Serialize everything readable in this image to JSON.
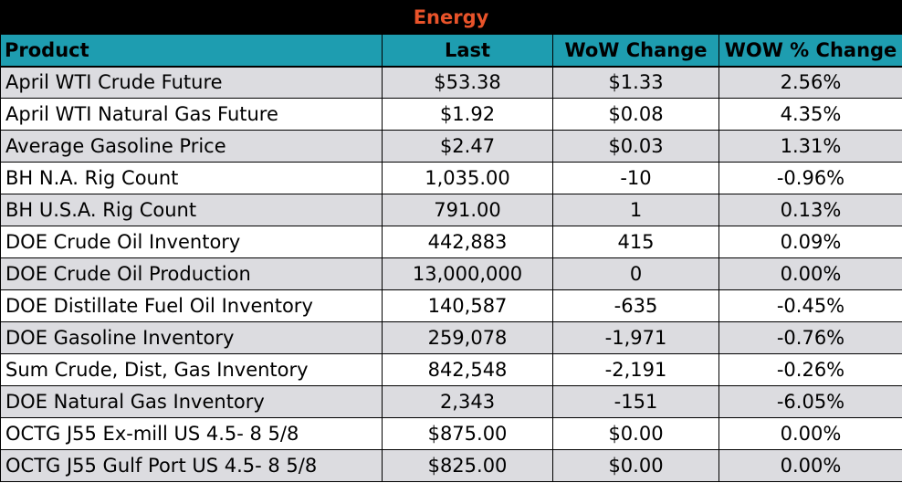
{
  "title": "Energy",
  "colors": {
    "title_background": "#000000",
    "title_text": "#e8532a",
    "header_background": "#1e9db0",
    "row_shade": "#dcdce0",
    "row_plain": "#ffffff"
  },
  "headers": {
    "product": "Product",
    "last": "Last",
    "wow_change": "WoW Change",
    "wow_pct_change": "WOW % Change"
  },
  "rows": [
    {
      "product": "April WTI Crude Future",
      "last": "$53.38",
      "wow_change": "$1.33",
      "wow_pct_change": "2.56%"
    },
    {
      "product": "April WTI Natural Gas Future",
      "last": "$1.92",
      "wow_change": "$0.08",
      "wow_pct_change": "4.35%"
    },
    {
      "product": "Average Gasoline Price",
      "last": "$2.47",
      "wow_change": "$0.03",
      "wow_pct_change": "1.31%"
    },
    {
      "product": "BH N.A. Rig Count",
      "last": "1,035.00",
      "wow_change": "-10",
      "wow_pct_change": "-0.96%"
    },
    {
      "product": "BH U.S.A. Rig Count",
      "last": "791.00",
      "wow_change": "1",
      "wow_pct_change": "0.13%"
    },
    {
      "product": "DOE Crude Oil Inventory",
      "last": "442,883",
      "wow_change": "415",
      "wow_pct_change": "0.09%"
    },
    {
      "product": "DOE Crude Oil Production",
      "last": "13,000,000",
      "wow_change": "0",
      "wow_pct_change": "0.00%"
    },
    {
      "product": "DOE Distillate Fuel Oil Inventory",
      "last": "140,587",
      "wow_change": "-635",
      "wow_pct_change": "-0.45%"
    },
    {
      "product": "DOE Gasoline Inventory",
      "last": "259,078",
      "wow_change": "-1,971",
      "wow_pct_change": "-0.76%"
    },
    {
      "product": "Sum Crude, Dist, Gas Inventory",
      "last": "842,548",
      "wow_change": "-2,191",
      "wow_pct_change": "-0.26%"
    },
    {
      "product": "DOE Natural Gas Inventory",
      "last": "2,343",
      "wow_change": "-151",
      "wow_pct_change": "-6.05%"
    },
    {
      "product": "OCTG J55 Ex-mill US 4.5- 8 5/8",
      "last": "$875.00",
      "wow_change": "$0.00",
      "wow_pct_change": "0.00%"
    },
    {
      "product": "OCTG J55 Gulf Port US 4.5- 8 5/8",
      "last": "$825.00",
      "wow_change": "$0.00",
      "wow_pct_change": "0.00%"
    }
  ]
}
